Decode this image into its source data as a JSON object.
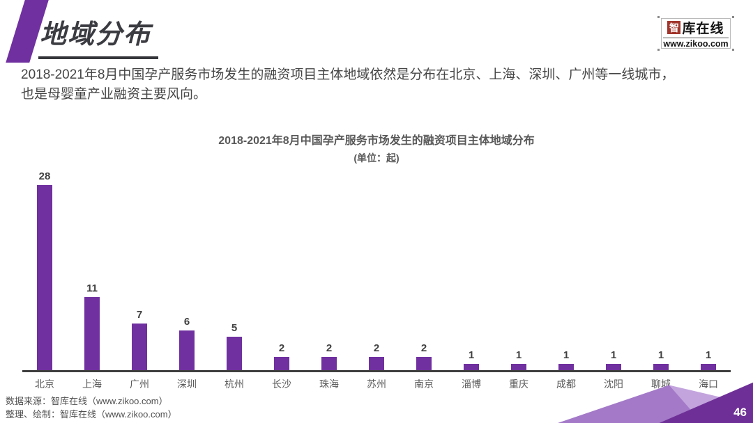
{
  "header": {
    "title": "地域分布"
  },
  "logo": {
    "brand_first_char": "智",
    "brand_rest": "库在线",
    "url": "www.zikoo.com"
  },
  "intro": {
    "line1": "2018-2021年8月中国孕产服务市场发生的融资项目主体地域依然是分布在北京、上海、深圳、广州等一线城市，",
    "line2": "也是母婴童产业融资主要风向。"
  },
  "chart_data": {
    "type": "bar",
    "title": "2018-2021年8月中国孕产服务市场发生的融资项目主体地域分布",
    "unit_label": "(单位：起)",
    "categories": [
      "北京",
      "上海",
      "广州",
      "深圳",
      "杭州",
      "长沙",
      "珠海",
      "苏州",
      "南京",
      "淄博",
      "重庆",
      "成都",
      "沈阳",
      "聊城",
      "海口"
    ],
    "values": [
      28,
      11,
      7,
      6,
      5,
      2,
      2,
      2,
      2,
      1,
      1,
      1,
      1,
      1,
      1
    ],
    "ylim": [
      0,
      28
    ],
    "grid": false,
    "value_labels_shown": true,
    "legend": "none",
    "bar_color": "#7030A0",
    "axis_color": "#3f3f3f"
  },
  "footer": {
    "source_line1": "数据来源：智库在线（www.zikoo.com）",
    "source_line2": "整理、绘制：智库在线（www.zikoo.com）",
    "page_number": "46"
  },
  "colors": {
    "accent_purple": "#7030A0",
    "decor_light": "#c3a4dd",
    "decor_mid": "#a379c8",
    "decor_dark": "#6e3097",
    "logo_red": "#a1352c"
  }
}
